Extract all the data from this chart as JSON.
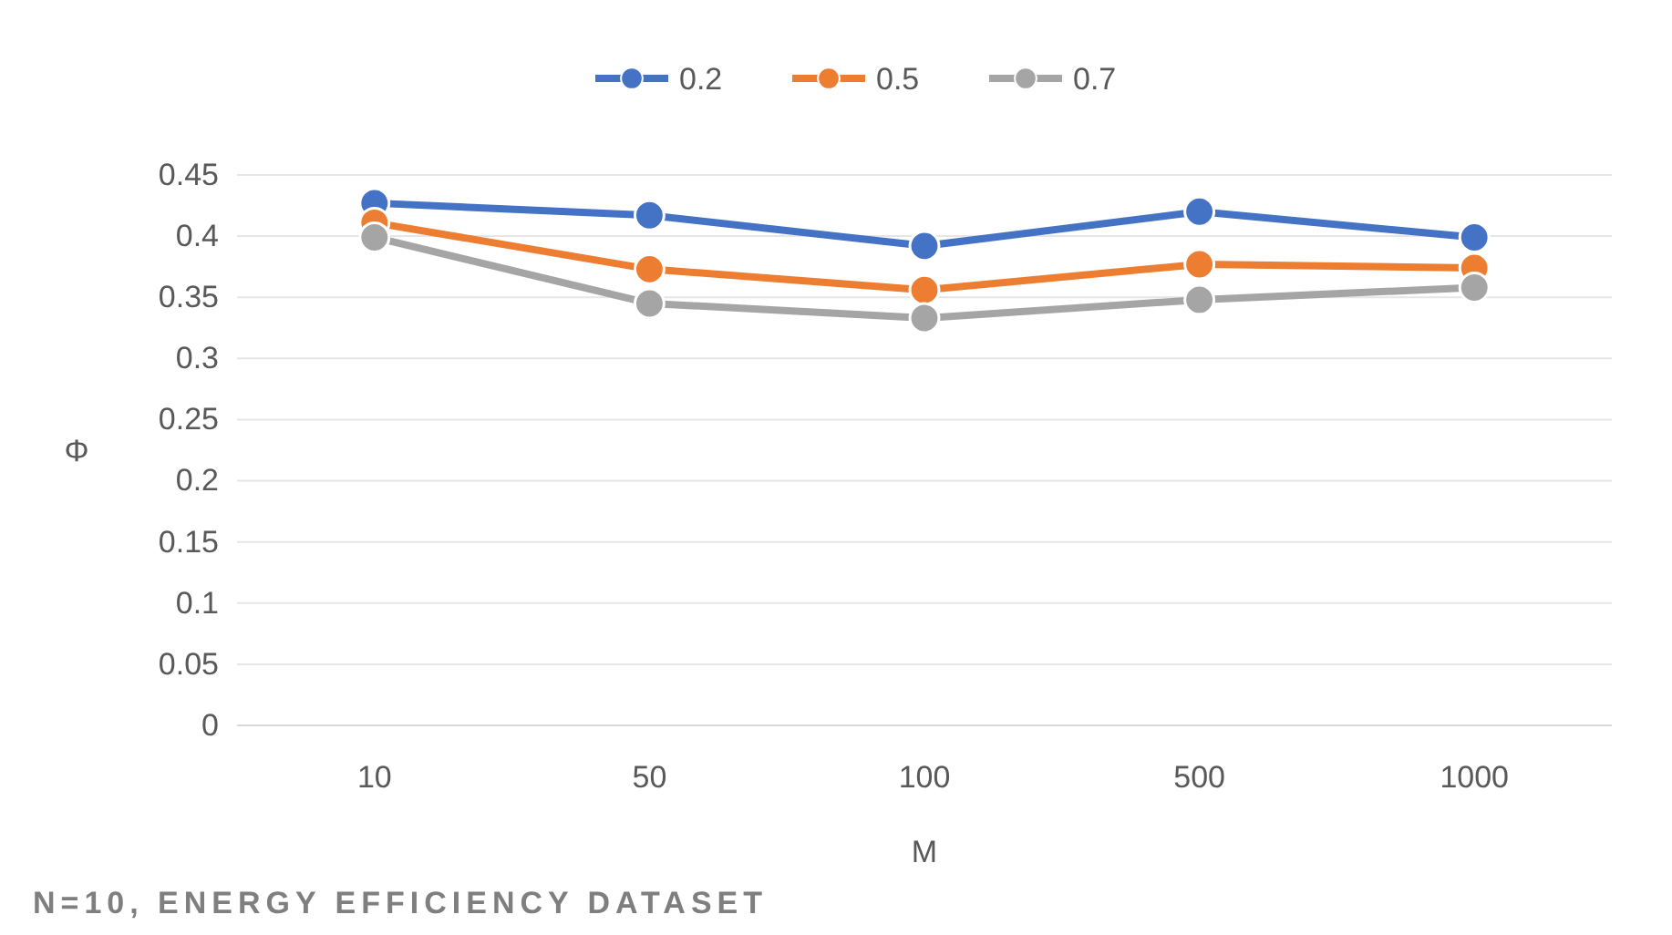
{
  "chart_data": {
    "type": "line",
    "categories": [
      "10",
      "50",
      "100",
      "500",
      "1000"
    ],
    "xlabel": "M",
    "ylabel": "Φ",
    "ylim": [
      0,
      0.45
    ],
    "yticks": [
      0,
      0.05,
      0.1,
      0.15,
      0.2,
      0.25,
      0.3,
      0.35,
      0.4,
      0.45
    ],
    "grid": "y",
    "legend": "top",
    "marker": "circle",
    "line_style": "solid",
    "series": [
      {
        "name": "0.2",
        "color": "#4472c4",
        "values": [
          0.427,
          0.417,
          0.392,
          0.42,
          0.399
        ]
      },
      {
        "name": "0.5",
        "color": "#ed7d31",
        "values": [
          0.411,
          0.373,
          0.356,
          0.377,
          0.374
        ]
      },
      {
        "name": "0.7",
        "color": "#a5a5a5",
        "values": [
          0.399,
          0.345,
          0.333,
          0.348,
          0.358
        ]
      }
    ],
    "annotations": [
      "N=10, ENERGY EFFICIENCY DATASET"
    ]
  }
}
